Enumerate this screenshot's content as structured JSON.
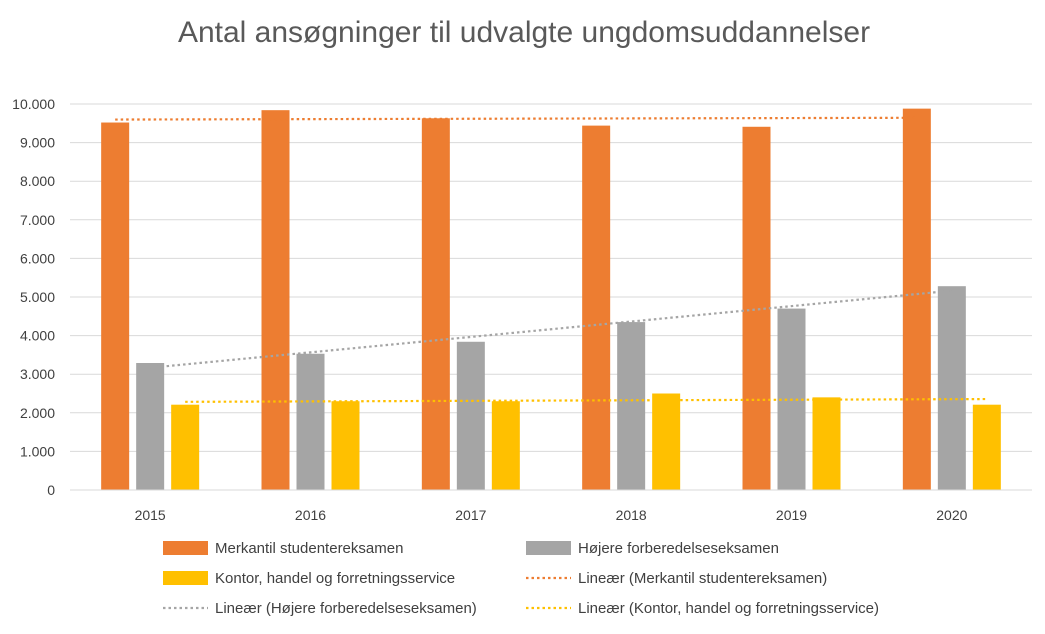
{
  "chart_data": {
    "type": "bar",
    "title": "Antal ansøgninger til udvalgte ungdomsuddannelser",
    "xlabel": "",
    "ylabel": "",
    "categories": [
      "2015",
      "2016",
      "2017",
      "2018",
      "2019",
      "2020"
    ],
    "ylim": [
      0,
      10000
    ],
    "yticks": [
      "0",
      "1.000",
      "2.000",
      "3.000",
      "4.000",
      "5.000",
      "6.000",
      "7.000",
      "8.000",
      "9.000",
      "10.000"
    ],
    "grid": true,
    "legend_position": "bottom",
    "series": [
      {
        "name": "Merkantil studentereksamen",
        "color": "#ED7D31",
        "values": [
          9520,
          9840,
          9630,
          9440,
          9410,
          9880
        ]
      },
      {
        "name": "Højere forberedelseseksamen",
        "color": "#A5A5A5",
        "values": [
          3290,
          3530,
          3840,
          4350,
          4700,
          5280
        ]
      },
      {
        "name": "Kontor, handel og forretningsservice",
        "color": "#FFC000",
        "values": [
          2210,
          2300,
          2300,
          2500,
          2400,
          2210
        ]
      }
    ],
    "trendlines": [
      {
        "name": "Lineær (Merkantil studentereksamen)",
        "series": 0,
        "color": "#ED7D31"
      },
      {
        "name": "Lineær (Højere forberedelseseksamen)",
        "series": 1,
        "color": "#A5A5A5"
      },
      {
        "name": "Lineær (Kontor, handel og forretningsservice)",
        "series": 2,
        "color": "#FFC000"
      }
    ]
  }
}
